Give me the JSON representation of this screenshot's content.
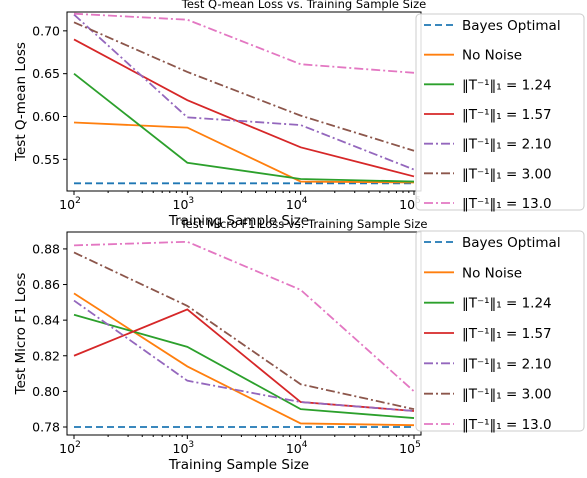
{
  "chart_data": [
    {
      "type": "line",
      "title": "Test Q-mean Loss vs. Training Sample Size",
      "xlabel": "Training Sample Size",
      "ylabel": "Test Q-mean Loss",
      "xscale": "log",
      "x": [
        100,
        1000,
        10000,
        100000
      ],
      "x_ticks": [
        100,
        1000,
        10000,
        100000
      ],
      "x_tick_labels": [
        [
          "10",
          "2"
        ],
        [
          "10",
          "3"
        ],
        [
          "10",
          "4"
        ],
        [
          "10",
          "5"
        ]
      ],
      "ylim": [
        0.513,
        0.722
      ],
      "y_ticks": [
        0.55,
        0.6,
        0.65,
        0.7
      ],
      "y_tick_labels": [
        "0.55",
        "0.60",
        "0.65",
        "0.70"
      ],
      "legend_position": "right",
      "series": [
        {
          "name": "Bayes Optimal",
          "color": "#1f77b4",
          "dash": "dashed",
          "values": [
            0.522,
            0.522,
            0.522,
            0.522
          ]
        },
        {
          "name": "No Noise",
          "color": "#ff7f0e",
          "dash": "solid",
          "values": [
            0.593,
            0.587,
            0.524,
            0.523
          ]
        },
        {
          "name": "‖T⁻¹‖₁ = 1.24",
          "color": "#2ca02c",
          "dash": "solid",
          "values": [
            0.65,
            0.546,
            0.527,
            0.524
          ]
        },
        {
          "name": "‖T⁻¹‖₁ = 1.57",
          "color": "#d62728",
          "dash": "solid",
          "values": [
            0.69,
            0.619,
            0.564,
            0.53
          ]
        },
        {
          "name": "‖T⁻¹‖₁ = 2.10",
          "color": "#9467bd",
          "dash": "dashdot",
          "values": [
            0.719,
            0.599,
            0.59,
            0.538
          ]
        },
        {
          "name": "‖T⁻¹‖₁ = 3.00",
          "color": "#8c564b",
          "dash": "dashdot",
          "values": [
            0.71,
            0.652,
            0.601,
            0.56
          ]
        },
        {
          "name": "‖T⁻¹‖₁ = 13.0",
          "color": "#e377c2",
          "dash": "dashdot",
          "values": [
            0.72,
            0.713,
            0.661,
            0.651
          ]
        }
      ]
    },
    {
      "type": "line",
      "title": "Test Micro F1 Loss vs. Training Sample Size",
      "xlabel": "Training Sample Size",
      "ylabel": "Test Micro F1 Loss",
      "xscale": "log",
      "x": [
        100,
        1000,
        10000,
        100000
      ],
      "x_ticks": [
        100,
        1000,
        10000,
        100000
      ],
      "x_tick_labels": [
        [
          "10",
          "2"
        ],
        [
          "10",
          "3"
        ],
        [
          "10",
          "4"
        ],
        [
          "10",
          "5"
        ]
      ],
      "ylim": [
        0.7755,
        0.8895
      ],
      "y_ticks": [
        0.78,
        0.8,
        0.82,
        0.84,
        0.86,
        0.88
      ],
      "y_tick_labels": [
        "0.78",
        "0.80",
        "0.82",
        "0.84",
        "0.86",
        "0.88"
      ],
      "legend_position": "right",
      "series": [
        {
          "name": "Bayes Optimal",
          "color": "#1f77b4",
          "dash": "dashed",
          "values": [
            0.78,
            0.78,
            0.78,
            0.78
          ]
        },
        {
          "name": "No Noise",
          "color": "#ff7f0e",
          "dash": "solid",
          "values": [
            0.855,
            0.814,
            0.782,
            0.781
          ]
        },
        {
          "name": "‖T⁻¹‖₁ = 1.24",
          "color": "#2ca02c",
          "dash": "solid",
          "values": [
            0.843,
            0.825,
            0.79,
            0.785
          ]
        },
        {
          "name": "‖T⁻¹‖₁ = 1.57",
          "color": "#d62728",
          "dash": "solid",
          "values": [
            0.82,
            0.846,
            0.794,
            0.789
          ]
        },
        {
          "name": "‖T⁻¹‖₁ = 2.10",
          "color": "#9467bd",
          "dash": "dashdot",
          "values": [
            0.851,
            0.806,
            0.794,
            0.789
          ]
        },
        {
          "name": "‖T⁻¹‖₁ = 3.00",
          "color": "#8c564b",
          "dash": "dashdot",
          "values": [
            0.878,
            0.848,
            0.804,
            0.79
          ]
        },
        {
          "name": "‖T⁻¹‖₁ = 13.0",
          "color": "#e377c2",
          "dash": "dashdot",
          "values": [
            0.882,
            0.884,
            0.857,
            0.8
          ]
        }
      ]
    }
  ]
}
